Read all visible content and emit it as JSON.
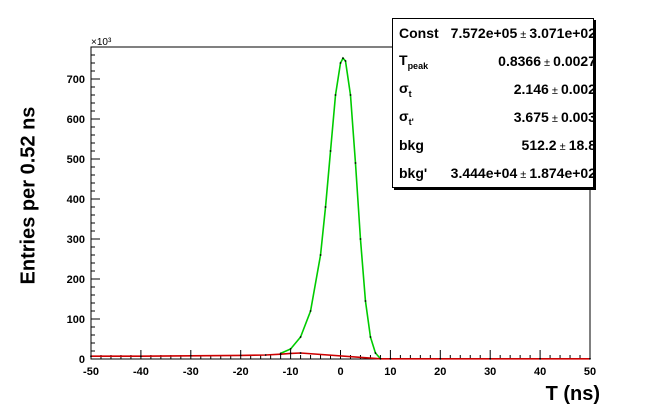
{
  "chart_data": {
    "type": "line",
    "xlabel": "T (ns)",
    "ylabel": "Entries per 0.52 ns",
    "y_multiplier": "×10³",
    "xlim": [
      -50,
      50
    ],
    "ylim": [
      0,
      780
    ],
    "xticks": [
      -50,
      -40,
      -30,
      -20,
      -10,
      0,
      10,
      20,
      30,
      40,
      50
    ],
    "yticks": [
      0,
      100,
      200,
      300,
      400,
      500,
      600,
      700
    ],
    "grid": false,
    "series": [
      {
        "color": "#00cc00",
        "x": [
          -12,
          -10,
          -8,
          -6,
          -4,
          -3,
          -2,
          -1,
          0,
          0.5,
          1,
          2,
          3,
          4,
          5,
          6,
          7,
          8
        ],
        "y": [
          14,
          25,
          55,
          120,
          260,
          380,
          520,
          660,
          740,
          752,
          745,
          660,
          490,
          300,
          145,
          55,
          15,
          1
        ]
      },
      {
        "color": "#cc0000",
        "x": [
          -50,
          -40,
          -30,
          -20,
          -15,
          -12,
          -10,
          -8,
          8,
          10,
          20,
          30,
          40,
          50
        ],
        "y": [
          7,
          7,
          8,
          9,
          10,
          12,
          14,
          15,
          0.5,
          0.5,
          0.5,
          0.5,
          0.5,
          0.5
        ]
      }
    ]
  },
  "stats": {
    "rows": [
      {
        "label": "Const",
        "sub": "",
        "value": "7.572e+05",
        "error": "3.071e+02"
      },
      {
        "label": "T",
        "sub": "peak",
        "value": "0.8366",
        "error": "0.0027"
      },
      {
        "label": "σ",
        "sub": "t",
        "value": "2.146",
        "error": "0.002"
      },
      {
        "label": "σ",
        "sub": "t'",
        "value": "3.675",
        "error": "0.003"
      },
      {
        "label": "bkg",
        "sub": "",
        "value": "512.2",
        "error": "18.8"
      },
      {
        "label": "bkg'",
        "sub": "",
        "value": "3.444e+04",
        "error": "1.874e+02"
      }
    ],
    "pm_symbol": "±"
  }
}
